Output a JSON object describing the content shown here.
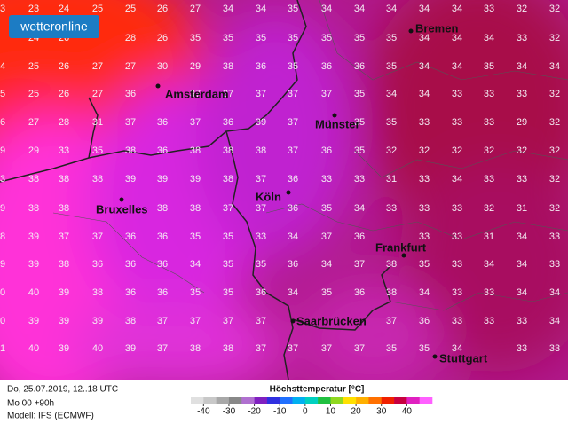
{
  "logo": "wetteronline",
  "grid": {
    "rows": [
      [
        "3",
        "23",
        "24",
        "25",
        "25",
        "26",
        "27",
        "34",
        "34",
        "35",
        "34",
        "34",
        "34",
        "34",
        "34",
        "33",
        "32",
        "32"
      ],
      [
        null,
        "24",
        "26",
        null,
        "28",
        "26",
        "35",
        "35",
        "35",
        "35",
        "35",
        "35",
        "35",
        "34",
        "34",
        "34",
        "33",
        "32"
      ],
      [
        "4",
        "25",
        "26",
        "27",
        "27",
        "30",
        "29",
        "38",
        "36",
        "35",
        "36",
        "36",
        "35",
        "34",
        "34",
        "35",
        "34",
        "34"
      ],
      [
        "5",
        "25",
        "26",
        "27",
        "36",
        null,
        "37",
        "37",
        "37",
        "37",
        "37",
        "35",
        "34",
        "34",
        "33",
        "33",
        "33",
        "32"
      ],
      [
        "6",
        "27",
        "28",
        "31",
        "37",
        "36",
        "37",
        "36",
        "39",
        "37",
        null,
        "35",
        "35",
        "33",
        "33",
        "33",
        "29",
        "32"
      ],
      [
        "9",
        "29",
        "33",
        "35",
        "38",
        "36",
        "38",
        "38",
        "38",
        "37",
        "36",
        "35",
        "32",
        "32",
        "32",
        "32",
        "32",
        "32"
      ],
      [
        "3",
        "38",
        "38",
        "38",
        "39",
        "39",
        "39",
        "38",
        "37",
        "36",
        "33",
        "33",
        "31",
        "33",
        "34",
        "33",
        "33",
        "32"
      ],
      [
        "9",
        "38",
        "38",
        null,
        null,
        "38",
        "38",
        "37",
        "37",
        "36",
        "35",
        "34",
        "33",
        "33",
        "33",
        "32",
        "31",
        "32"
      ],
      [
        "8",
        "39",
        "37",
        "37",
        "36",
        "36",
        "35",
        "35",
        "33",
        "34",
        "37",
        "36",
        null,
        "33",
        "33",
        "31",
        "34",
        "33"
      ],
      [
        "9",
        "39",
        "38",
        "36",
        "36",
        "36",
        "34",
        "35",
        "35",
        "36",
        "34",
        "37",
        "38",
        "35",
        "33",
        "34",
        "34",
        "33"
      ],
      [
        "0",
        "40",
        "39",
        "38",
        "36",
        "36",
        "35",
        "35",
        "36",
        "34",
        "35",
        "36",
        "38",
        "34",
        "33",
        "33",
        "34",
        "34"
      ],
      [
        "0",
        "39",
        "39",
        "39",
        "38",
        "37",
        "37",
        "37",
        "37",
        null,
        null,
        null,
        "37",
        "36",
        "33",
        "33",
        "33",
        "34"
      ],
      [
        "1",
        "40",
        "39",
        "40",
        "39",
        "37",
        "38",
        "38",
        "37",
        "37",
        "37",
        "37",
        "35",
        "35",
        "34",
        null,
        "33",
        "33"
      ]
    ]
  },
  "cities": [
    "Bremen",
    "Amsterdam",
    "Münster",
    "Köln",
    "Bruxelles",
    "Frankfurt",
    "Saarbrücken",
    "Stuttgart"
  ],
  "footer": {
    "date": "Do, 25.07.2019, 12..18 UTC",
    "run": "Mo 00 +90h",
    "model": "Modell: IFS (ECMWF)"
  },
  "legend": {
    "title": "Höchsttemperatur [°C]",
    "lim": [
      -45,
      50
    ],
    "ticks": [
      -40,
      -30,
      -20,
      -10,
      0,
      10,
      20,
      30,
      40
    ],
    "colors": [
      "#e0e0e0",
      "#c8c8c8",
      "#a8a8a8",
      "#888888",
      "#b070d0",
      "#8020c0",
      "#3030e0",
      "#2070ff",
      "#00b0f0",
      "#00d0c0",
      "#20c040",
      "#90d820",
      "#ffe000",
      "#ffb000",
      "#ff7000",
      "#f02000",
      "#c80040",
      "#e020c0",
      "#ff60ff"
    ]
  }
}
